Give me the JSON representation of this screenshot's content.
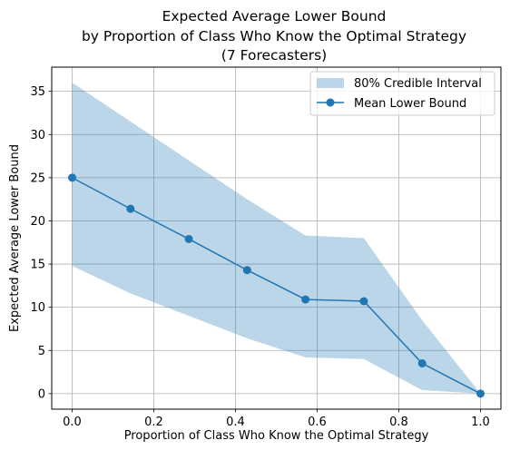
{
  "chart_data": {
    "type": "line",
    "title_lines": [
      "Expected Average Lower Bound",
      "by Proportion of Class Who Know the Optimal Strategy",
      "(7 Forecasters)"
    ],
    "xlabel": "Proportion of Class Who Know the Optimal Strategy",
    "ylabel": "Expected Average Lower Bound",
    "xlim": [
      -0.05,
      1.05
    ],
    "ylim": [
      -1.8,
      37.8
    ],
    "xticks": [
      0.0,
      0.2,
      0.4,
      0.6,
      0.8,
      1.0
    ],
    "xtick_labels": [
      "0.0",
      "0.2",
      "0.4",
      "0.6",
      "0.8",
      "1.0"
    ],
    "yticks": [
      0,
      5,
      10,
      15,
      20,
      25,
      30,
      35
    ],
    "ytick_labels": [
      "0",
      "5",
      "10",
      "15",
      "20",
      "25",
      "30",
      "35"
    ],
    "grid": true,
    "legend_position": "top-right",
    "series": [
      {
        "name": "Mean Lower Bound",
        "kind": "line-marker",
        "color": "#1f77b4",
        "x": [
          0.0,
          0.1429,
          0.2857,
          0.4286,
          0.5714,
          0.7143,
          0.8571,
          1.0
        ],
        "y": [
          25.0,
          21.4,
          17.9,
          14.3,
          10.9,
          10.7,
          3.5,
          0.0
        ]
      },
      {
        "name": "80% Credible Interval",
        "kind": "band",
        "color": "#1f77b4",
        "alpha": 0.3,
        "x": [
          0.0,
          0.1429,
          0.2857,
          0.4286,
          0.5714,
          0.7143,
          0.8571,
          1.0
        ],
        "lower": [
          14.8,
          11.6,
          9.0,
          6.4,
          4.2,
          4.0,
          0.4,
          0.0
        ],
        "upper": [
          36.0,
          31.5,
          27.0,
          22.5,
          18.3,
          18.0,
          8.5,
          0.0
        ]
      }
    ]
  }
}
